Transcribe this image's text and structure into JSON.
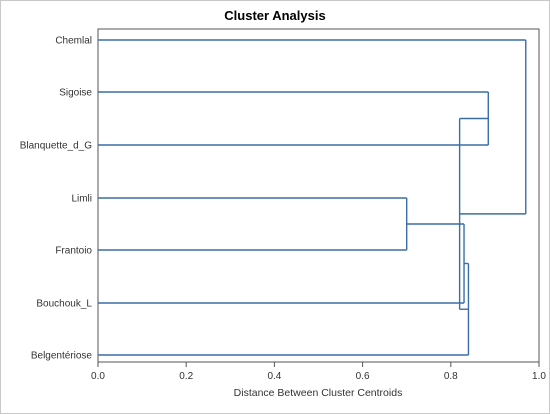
{
  "chart_data": {
    "type": "dendrogram",
    "title": "Cluster Analysis",
    "xlabel": "Distance Between Cluster Centroids",
    "ylabel": "",
    "xlim": [
      0,
      1.0
    ],
    "x_ticks": [
      "0.0",
      "0.2",
      "0.4",
      "0.6",
      "0.8",
      "1.0"
    ],
    "leaves": [
      "Chemlal",
      "Sigoise",
      "Blanquette_d_G",
      "Limli",
      "Frantoio",
      "Bouchouk_L",
      "Belgentériose"
    ],
    "merges": [
      {
        "left": "Limli",
        "right": "Frantoio",
        "distance": 0.7
      },
      {
        "left": "Limli+Frantoio",
        "right": "Bouchouk_L",
        "distance": 0.83
      },
      {
        "left": "Limli+Frantoio+Bouchouk_L",
        "right": "Belgentériose",
        "distance": 0.84
      },
      {
        "left": "Sigoise",
        "right": "Blanquette_d_G",
        "distance": 0.885
      },
      {
        "left": "Sigoise+Blanquette_d_G",
        "right": "Limli+Frantoio+Bouchouk_L+Belgentériose",
        "distance": 0.82
      },
      {
        "left": "Chemlal",
        "right": "rest",
        "distance": 0.97
      }
    ],
    "line_color": "#3a6ea5",
    "grid": false
  }
}
